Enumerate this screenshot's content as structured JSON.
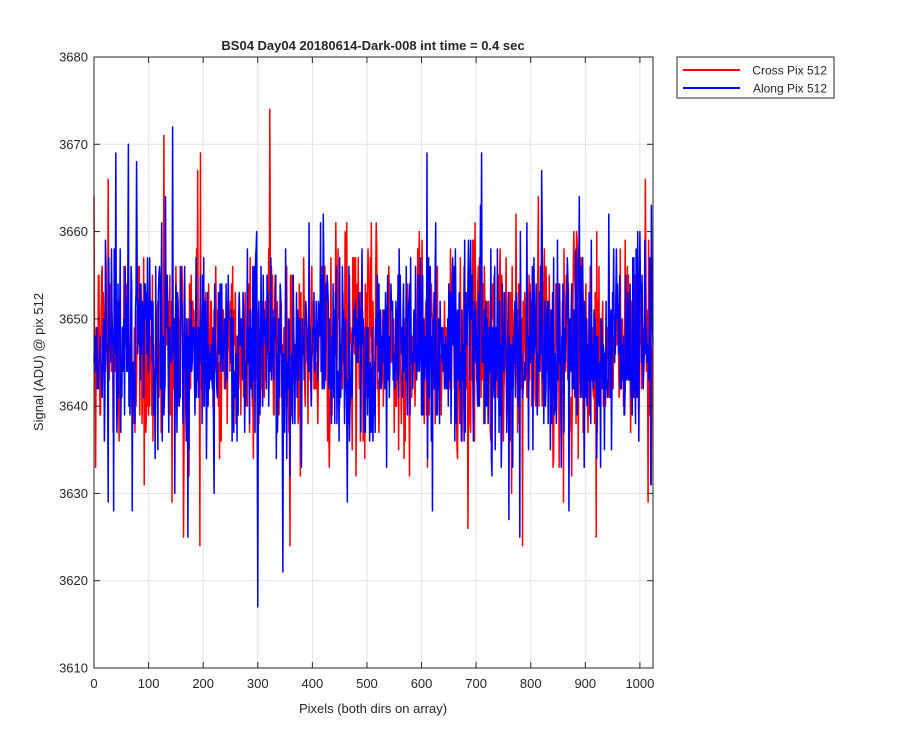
{
  "chart_data": {
    "type": "line",
    "title": "BS04 Day04 20180614-Dark-008 int time = 0.4 sec",
    "xlabel": "Pixels (both dirs on array)",
    "ylabel": "Signal (ADU) @ pix 512",
    "xlim": [
      0,
      1024
    ],
    "ylim": [
      3610,
      3680
    ],
    "xticks": [
      0,
      100,
      200,
      300,
      400,
      500,
      600,
      700,
      800,
      900,
      1000
    ],
    "yticks": [
      3610,
      3620,
      3630,
      3640,
      3650,
      3660,
      3670,
      3680
    ],
    "grid": true,
    "legend_position": "outside-top-right",
    "noise_model": {
      "mean": 3647,
      "std": 6,
      "points": 1024
    },
    "series": [
      {
        "name": "Cross Pix 512",
        "color": "#ff0000",
        "points": [
          [
            0,
            3664
          ],
          [
            3,
            3633
          ],
          [
            22,
            3651
          ],
          [
            26,
            3666
          ],
          [
            92,
            3631
          ],
          [
            120,
            3647
          ],
          [
            128,
            3671
          ],
          [
            143,
            3629
          ],
          [
            158,
            3656
          ],
          [
            164,
            3625
          ],
          [
            190,
            3667
          ],
          [
            195,
            3669
          ],
          [
            230,
            3634
          ],
          [
            255,
            3640
          ],
          [
            286,
            3657
          ],
          [
            300,
            3647
          ],
          [
            320,
            3658
          ],
          [
            322,
            3674
          ],
          [
            340,
            3648
          ],
          [
            385,
            3652
          ],
          [
            400,
            3646
          ],
          [
            460,
            3660
          ],
          [
            520,
            3643
          ],
          [
            560,
            3653
          ],
          [
            600,
            3654
          ],
          [
            640,
            3645
          ],
          [
            685,
            3626
          ],
          [
            700,
            3652
          ],
          [
            785,
            3624
          ],
          [
            800,
            3645
          ],
          [
            860,
            3629
          ],
          [
            900,
            3650
          ],
          [
            920,
            3625
          ],
          [
            1000,
            3657
          ],
          [
            1010,
            3666
          ],
          [
            1015,
            3629
          ],
          [
            1024,
            3647
          ]
        ]
      },
      {
        "name": "Along Pix 512",
        "color": "#0000ff",
        "points": [
          [
            0,
            3645
          ],
          [
            40,
            3669
          ],
          [
            63,
            3670
          ],
          [
            70,
            3628
          ],
          [
            144,
            3672
          ],
          [
            148,
            3630
          ],
          [
            200,
            3643
          ],
          [
            250,
            3650
          ],
          [
            300,
            3617
          ],
          [
            310,
            3655
          ],
          [
            346,
            3621
          ],
          [
            400,
            3647
          ],
          [
            450,
            3657
          ],
          [
            550,
            3643
          ],
          [
            610,
            3669
          ],
          [
            620,
            3628
          ],
          [
            700,
            3648
          ],
          [
            710,
            3669
          ],
          [
            760,
            3627
          ],
          [
            780,
            3625
          ],
          [
            820,
            3667
          ],
          [
            870,
            3628
          ],
          [
            900,
            3646
          ],
          [
            960,
            3650
          ],
          [
            1000,
            3660
          ],
          [
            1020,
            3631
          ],
          [
            1024,
            3647
          ]
        ]
      }
    ]
  }
}
